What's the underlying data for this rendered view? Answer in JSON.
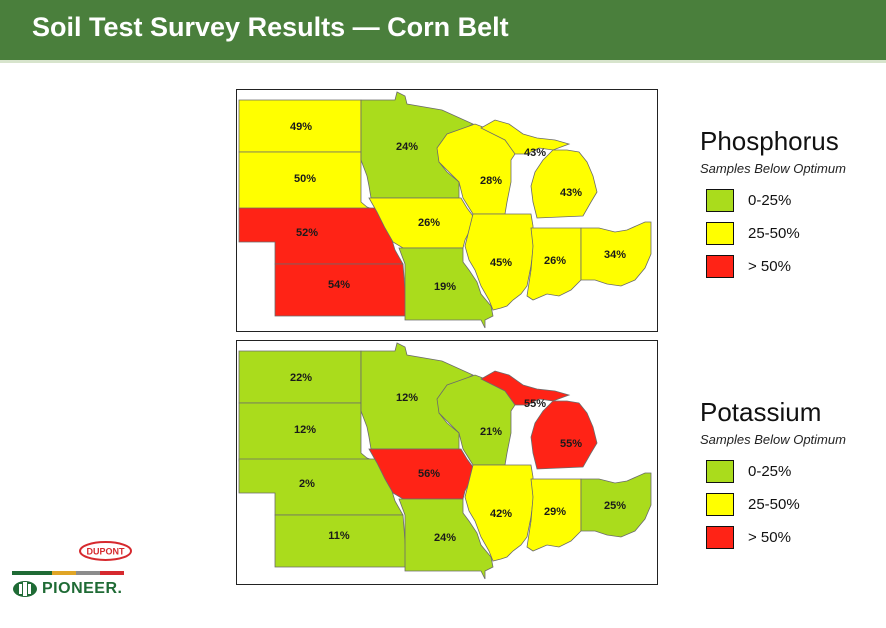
{
  "header": {
    "title": "Soil Test Survey Results — Corn Belt"
  },
  "colors": {
    "low": "#aadc1c",
    "mid": "#ffff00",
    "high": "#ff2316",
    "title_bar": "#4a7f3c",
    "pioneer_green": "#1f6b35",
    "dupont_red": "#d6292e"
  },
  "maps": [
    {
      "nutrient": "Phosphorus",
      "subtitle": "Samples Below Optimum",
      "legend": [
        {
          "range": "0-25%",
          "level": "low"
        },
        {
          "range": "25-50%",
          "level": "mid"
        },
        {
          "range": "> 50%",
          "level": "high"
        }
      ],
      "regions": [
        {
          "region": "North Dakota",
          "value": "49%",
          "level": "mid"
        },
        {
          "region": "South Dakota",
          "value": "50%",
          "level": "mid"
        },
        {
          "region": "Nebraska",
          "value": "52%",
          "level": "high"
        },
        {
          "region": "Kansas",
          "value": "54%",
          "level": "high"
        },
        {
          "region": "Minnesota",
          "value": "24%",
          "level": "low"
        },
        {
          "region": "Iowa",
          "value": "26%",
          "level": "mid"
        },
        {
          "region": "Missouri",
          "value": "19%",
          "level": "low"
        },
        {
          "region": "Wisconsin",
          "value": "28%",
          "level": "mid"
        },
        {
          "region": "Upper Michigan",
          "value": "43%",
          "level": "mid"
        },
        {
          "region": "Lower Michigan",
          "value": "43%",
          "level": "mid"
        },
        {
          "region": "Illinois",
          "value": "45%",
          "level": "mid"
        },
        {
          "region": "Indiana",
          "value": "26%",
          "level": "mid"
        },
        {
          "region": "Ohio",
          "value": "34%",
          "level": "mid"
        }
      ]
    },
    {
      "nutrient": "Potassium",
      "subtitle": "Samples Below Optimum",
      "legend": [
        {
          "range": "0-25%",
          "level": "low"
        },
        {
          "range": "25-50%",
          "level": "mid"
        },
        {
          "range": "> 50%",
          "level": "high"
        }
      ],
      "regions": [
        {
          "region": "North Dakota",
          "value": "22%",
          "level": "low"
        },
        {
          "region": "South Dakota",
          "value": "12%",
          "level": "low"
        },
        {
          "region": "Nebraska",
          "value": "2%",
          "level": "low"
        },
        {
          "region": "Kansas",
          "value": "11%",
          "level": "low"
        },
        {
          "region": "Minnesota",
          "value": "12%",
          "level": "low"
        },
        {
          "region": "Iowa",
          "value": "56%",
          "level": "high"
        },
        {
          "region": "Missouri",
          "value": "24%",
          "level": "low"
        },
        {
          "region": "Wisconsin",
          "value": "21%",
          "level": "low"
        },
        {
          "region": "Upper Michigan",
          "value": "55%",
          "level": "high"
        },
        {
          "region": "Lower Michigan",
          "value": "55%",
          "level": "high"
        },
        {
          "region": "Illinois",
          "value": "42%",
          "level": "mid"
        },
        {
          "region": "Indiana",
          "value": "29%",
          "level": "mid"
        },
        {
          "region": "Ohio",
          "value": "25%",
          "level": "low"
        }
      ]
    }
  ],
  "logos": {
    "dupont": "DUPONT",
    "pioneer": "PIONEER."
  }
}
